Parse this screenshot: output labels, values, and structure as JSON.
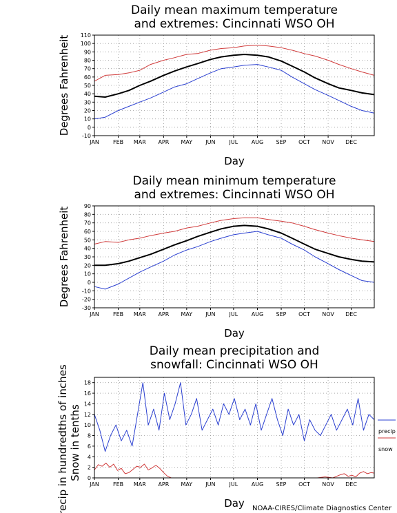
{
  "credit": "NOAA-CIRES/Climate Diagnostics Center",
  "colors": {
    "record_high": "#d03a3a",
    "record_low": "#2a3fd0",
    "mean": "#000000",
    "precip": "#2a3fd0",
    "snow": "#d03a3a"
  },
  "chart_data": [
    {
      "type": "line",
      "title_lines": [
        "Daily mean maximum temperature",
        "and extremes: Cincinnati WSO OH"
      ],
      "xlabel": "Day",
      "ylabel": "Degrees Fahrenheit",
      "ylim": [
        -10,
        110
      ],
      "yticks": [
        -10,
        0,
        10,
        20,
        30,
        40,
        50,
        60,
        70,
        80,
        90,
        100,
        110
      ],
      "months": [
        "JAN",
        "FEB",
        "MAR",
        "APR",
        "MAY",
        "JUN",
        "JUL",
        "AUG",
        "SEP",
        "OCT",
        "NOV",
        "DEC"
      ],
      "grid": true,
      "series": [
        {
          "key": "high",
          "color": "#d03a3a",
          "x": [
            1,
            15,
            32,
            46,
            60,
            74,
            91,
            105,
            121,
            135,
            152,
            166,
            182,
            196,
            213,
            227,
            244,
            258,
            274,
            288,
            305,
            319,
            335,
            349,
            365
          ],
          "values": [
            55,
            62,
            63,
            65,
            68,
            75,
            80,
            83,
            87,
            88,
            92,
            94,
            95,
            97,
            98,
            97,
            95,
            92,
            88,
            85,
            80,
            75,
            70,
            66,
            62
          ]
        },
        {
          "key": "mean",
          "color": "#000000",
          "x": [
            1,
            15,
            32,
            46,
            60,
            74,
            91,
            105,
            121,
            135,
            152,
            166,
            182,
            196,
            213,
            227,
            244,
            258,
            274,
            288,
            305,
            319,
            335,
            349,
            365
          ],
          "values": [
            37,
            36,
            40,
            44,
            50,
            55,
            62,
            67,
            72,
            76,
            81,
            84,
            86,
            87,
            86,
            84,
            79,
            73,
            66,
            59,
            52,
            47,
            44,
            41,
            39
          ]
        },
        {
          "key": "low",
          "color": "#2a3fd0",
          "x": [
            1,
            15,
            32,
            46,
            60,
            74,
            91,
            105,
            121,
            135,
            152,
            166,
            182,
            196,
            213,
            227,
            244,
            258,
            274,
            288,
            305,
            319,
            335,
            349,
            365
          ],
          "values": [
            10,
            12,
            20,
            25,
            30,
            35,
            42,
            48,
            52,
            58,
            65,
            70,
            72,
            74,
            75,
            72,
            68,
            60,
            52,
            45,
            38,
            32,
            25,
            20,
            17
          ]
        }
      ]
    },
    {
      "type": "line",
      "title_lines": [
        "Daily mean minimum temperature",
        "and extremes: Cincinnati WSO OH"
      ],
      "xlabel": "Day",
      "ylabel": "Degrees Fahrenheit",
      "ylim": [
        -30,
        90
      ],
      "yticks": [
        -30,
        -20,
        -10,
        0,
        10,
        20,
        30,
        40,
        50,
        60,
        70,
        80,
        90
      ],
      "months": [
        "JAN",
        "FEB",
        "MAR",
        "APR",
        "MAY",
        "JUN",
        "JUL",
        "AUG",
        "SEP",
        "OCT",
        "NOV",
        "DEC"
      ],
      "grid": true,
      "series": [
        {
          "key": "high",
          "color": "#d03a3a",
          "x": [
            1,
            15,
            32,
            46,
            60,
            74,
            91,
            105,
            121,
            135,
            152,
            166,
            182,
            196,
            213,
            227,
            244,
            258,
            274,
            288,
            305,
            319,
            335,
            349,
            365
          ],
          "values": [
            45,
            48,
            47,
            50,
            52,
            55,
            58,
            60,
            64,
            66,
            70,
            73,
            75,
            76,
            76,
            74,
            72,
            70,
            66,
            62,
            58,
            55,
            52,
            50,
            48
          ]
        },
        {
          "key": "mean",
          "color": "#000000",
          "x": [
            1,
            15,
            32,
            46,
            60,
            74,
            91,
            105,
            121,
            135,
            152,
            166,
            182,
            196,
            213,
            227,
            244,
            258,
            274,
            288,
            305,
            319,
            335,
            349,
            365
          ],
          "values": [
            20,
            20,
            22,
            25,
            29,
            33,
            39,
            44,
            49,
            54,
            59,
            63,
            66,
            67,
            66,
            63,
            58,
            52,
            45,
            39,
            34,
            30,
            27,
            25,
            24
          ]
        },
        {
          "key": "low",
          "color": "#2a3fd0",
          "x": [
            1,
            15,
            32,
            46,
            60,
            74,
            91,
            105,
            121,
            135,
            152,
            166,
            182,
            196,
            213,
            227,
            244,
            258,
            274,
            288,
            305,
            319,
            335,
            349,
            365
          ],
          "values": [
            -5,
            -8,
            -2,
            5,
            12,
            18,
            25,
            32,
            38,
            42,
            48,
            52,
            56,
            58,
            60,
            56,
            52,
            45,
            38,
            30,
            22,
            15,
            8,
            2,
            0
          ]
        }
      ]
    },
    {
      "type": "line",
      "title_lines": [
        "Daily mean precipitation and",
        "snowfall: Cincinnati WSO OH"
      ],
      "xlabel": "Day",
      "ylabel_lines": [
        "Precip in hundredths of inches",
        "Snow in tenths"
      ],
      "ylim": [
        0,
        19
      ],
      "yticks": [
        0,
        2,
        4,
        6,
        8,
        10,
        12,
        14,
        16,
        18
      ],
      "months": [
        "JAN",
        "FEB",
        "MAR",
        "APR",
        "MAY",
        "JUN",
        "JUL",
        "AUG",
        "SEP",
        "OCT",
        "NOV",
        "DEC"
      ],
      "grid": true,
      "legend": [
        "precip",
        "snow"
      ],
      "legend_position": "right",
      "series": [
        {
          "key": "precip",
          "name": "precip",
          "color": "#2a3fd0",
          "x": [
            1,
            8,
            15,
            22,
            29,
            36,
            43,
            50,
            57,
            64,
            71,
            78,
            85,
            92,
            99,
            106,
            113,
            120,
            127,
            134,
            141,
            148,
            155,
            162,
            169,
            176,
            183,
            190,
            197,
            204,
            211,
            218,
            225,
            232,
            239,
            246,
            253,
            260,
            267,
            274,
            281,
            288,
            295,
            302,
            309,
            316,
            323,
            330,
            337,
            344,
            351,
            358,
            365
          ],
          "values": [
            12,
            9,
            5,
            8,
            10,
            7,
            9,
            6,
            12,
            18,
            10,
            13,
            9,
            16,
            11,
            14,
            18,
            10,
            12,
            15,
            9,
            11,
            13,
            10,
            14,
            12,
            15,
            11,
            13,
            10,
            14,
            9,
            12,
            15,
            11,
            8,
            13,
            10,
            12,
            7,
            11,
            9,
            8,
            10,
            12,
            9,
            11,
            13,
            10,
            15,
            9,
            12,
            11
          ]
        },
        {
          "key": "snow",
          "name": "snow",
          "color": "#d03a3a",
          "x": [
            1,
            6,
            11,
            16,
            21,
            26,
            31,
            36,
            41,
            46,
            51,
            56,
            61,
            66,
            71,
            76,
            81,
            86,
            91,
            96,
            101,
            121,
            151,
            181,
            211,
            241,
            271,
            291,
            301,
            311,
            321,
            326,
            331,
            336,
            341,
            346,
            351,
            356,
            361,
            365
          ],
          "values": [
            1.5,
            2.5,
            2.2,
            2.8,
            2.0,
            2.6,
            1.4,
            1.8,
            0.8,
            1.0,
            1.6,
            2.2,
            2.0,
            2.6,
            1.5,
            1.9,
            2.4,
            1.8,
            1.0,
            0.3,
            0,
            0,
            0,
            0,
            0,
            0,
            0,
            0,
            0.2,
            0,
            0.6,
            0.8,
            0.3,
            0.5,
            0.2,
            0.9,
            1.2,
            0.8,
            1.0,
            0.9
          ]
        }
      ]
    }
  ]
}
